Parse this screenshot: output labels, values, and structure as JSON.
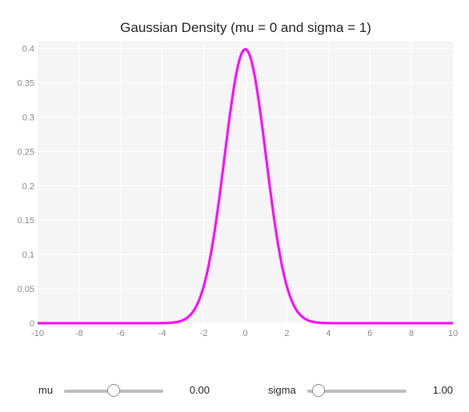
{
  "chart_data": {
    "type": "line",
    "title": "Gaussian Density (mu = 0 and sigma = 1)",
    "xlabel": "",
    "ylabel": "",
    "xlim": [
      -10,
      10
    ],
    "ylim": [
      0,
      0.41
    ],
    "x_ticks": [
      -10,
      -8,
      -6,
      -4,
      -2,
      0,
      2,
      4,
      6,
      8,
      10
    ],
    "x_tick_labels": [
      "-10",
      "-8",
      "-6",
      "-4",
      "-2",
      "0",
      "2",
      "4",
      "6",
      "8",
      "10"
    ],
    "y_ticks": [
      0,
      0.05,
      0.1,
      0.15,
      0.2,
      0.25,
      0.3,
      0.35,
      0.4
    ],
    "y_tick_labels": [
      "0",
      "0.05",
      "0.1",
      "0.15",
      "0.2",
      "0.25",
      "0.3",
      "0.35",
      "0.4"
    ],
    "grid": true,
    "series": [
      {
        "color": "#ff00ff",
        "x": [
          -10,
          -8,
          -6,
          -4,
          -3.5,
          -3,
          -2.5,
          -2,
          -1.5,
          -1,
          -0.5,
          0,
          0.5,
          1,
          1.5,
          2,
          2.5,
          3,
          3.5,
          4,
          6,
          8,
          10
        ],
        "y": [
          0,
          0,
          0,
          0.0001,
          0.0009,
          0.0044,
          0.0175,
          0.054,
          0.1295,
          0.242,
          0.3521,
          0.3989,
          0.3521,
          0.242,
          0.1295,
          0.054,
          0.0175,
          0.0044,
          0.0009,
          0.0001,
          0,
          0,
          0
        ]
      }
    ]
  },
  "controls": {
    "mu": {
      "label": "mu",
      "value": 0,
      "value_text": "0.00",
      "min": -5,
      "max": 5
    },
    "sigma": {
      "label": "sigma",
      "value": 1,
      "value_text": "1.00",
      "min": 0.5,
      "max": 5
    }
  },
  "colors": {
    "plot_background": "#f5f5f5",
    "grid": "#ffffff",
    "tick_text": "#888888",
    "line": "#ff00ff"
  }
}
